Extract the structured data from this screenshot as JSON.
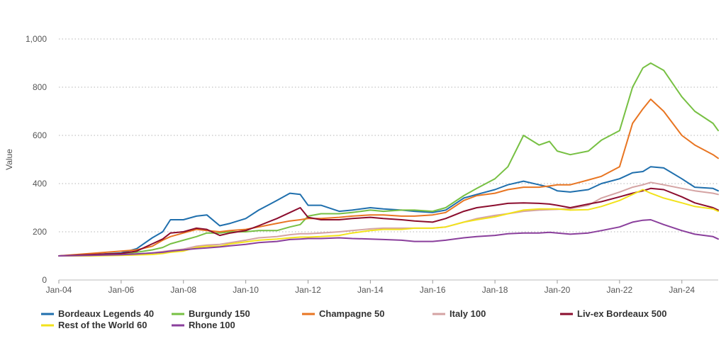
{
  "chart_data": {
    "type": "line",
    "title": "",
    "xlabel": "",
    "ylabel": "Value",
    "ylim": [
      0,
      1000
    ],
    "y_ticks": [
      "0",
      "200",
      "400",
      "600",
      "800",
      "1,000"
    ],
    "x_ticks": [
      "Jan-04",
      "Jan-06",
      "Jan-08",
      "Jan-10",
      "Jan-12",
      "Jan-14",
      "Jan-16",
      "Jan-18",
      "Jan-20",
      "Jan-22",
      "Jan-24"
    ],
    "grid": true,
    "legend_position": "bottom",
    "x_start": "2004-01",
    "x_end": "2025-03",
    "x": [
      "2004-01",
      "2005-01",
      "2006-01",
      "2006-07",
      "2007-01",
      "2007-05",
      "2007-08",
      "2008-01",
      "2008-06",
      "2008-10",
      "2009-03",
      "2009-07",
      "2010-01",
      "2010-06",
      "2011-01",
      "2011-06",
      "2011-10",
      "2012-01",
      "2012-06",
      "2013-01",
      "2013-06",
      "2014-01",
      "2014-06",
      "2015-01",
      "2015-06",
      "2016-01",
      "2016-06",
      "2017-01",
      "2017-06",
      "2018-01",
      "2018-06",
      "2018-12",
      "2019-06",
      "2019-10",
      "2020-01",
      "2020-06",
      "2021-01",
      "2021-06",
      "2022-01",
      "2022-06",
      "2022-10",
      "2023-01",
      "2023-06",
      "2024-01",
      "2024-06",
      "2025-01",
      "2025-03"
    ],
    "series": [
      {
        "name": "Bordeaux Legends 40",
        "color": "#1f6fad",
        "values": [
          100,
          105,
          112,
          130,
          175,
          200,
          250,
          250,
          265,
          270,
          225,
          235,
          255,
          290,
          330,
          360,
          355,
          310,
          310,
          285,
          290,
          300,
          295,
          290,
          285,
          280,
          290,
          340,
          355,
          375,
          395,
          410,
          395,
          385,
          370,
          365,
          375,
          400,
          420,
          445,
          450,
          470,
          465,
          420,
          385,
          380,
          370
        ]
      },
      {
        "name": "Burgundy 150",
        "color": "#77c043",
        "values": [
          100,
          102,
          108,
          115,
          125,
          135,
          150,
          165,
          180,
          195,
          195,
          200,
          200,
          205,
          205,
          220,
          230,
          265,
          275,
          275,
          280,
          290,
          285,
          290,
          290,
          285,
          300,
          350,
          380,
          420,
          470,
          600,
          560,
          575,
          535,
          520,
          535,
          580,
          620,
          800,
          880,
          900,
          870,
          760,
          700,
          650,
          620
        ]
      },
      {
        "name": "Champagne 50",
        "color": "#e87522",
        "values": [
          100,
          110,
          120,
          125,
          140,
          165,
          180,
          195,
          210,
          205,
          200,
          205,
          210,
          220,
          235,
          245,
          250,
          255,
          255,
          260,
          265,
          270,
          270,
          265,
          265,
          270,
          280,
          330,
          350,
          360,
          375,
          385,
          385,
          390,
          395,
          395,
          415,
          430,
          470,
          650,
          710,
          750,
          700,
          600,
          560,
          520,
          505
        ]
      },
      {
        "name": "Italy 100",
        "color": "#d4a3a3",
        "values": [
          100,
          102,
          105,
          108,
          112,
          118,
          122,
          128,
          140,
          145,
          148,
          155,
          165,
          175,
          180,
          188,
          192,
          192,
          195,
          200,
          205,
          212,
          215,
          215,
          215,
          215,
          220,
          240,
          255,
          268,
          275,
          285,
          290,
          292,
          293,
          296,
          310,
          340,
          365,
          385,
          395,
          405,
          395,
          380,
          370,
          360,
          355
        ]
      },
      {
        "name": "Liv-ex Bordeaux 500",
        "color": "#8b0d2e",
        "values": [
          100,
          105,
          110,
          120,
          150,
          170,
          195,
          200,
          215,
          210,
          185,
          195,
          205,
          225,
          255,
          280,
          300,
          260,
          250,
          250,
          255,
          260,
          255,
          250,
          245,
          240,
          255,
          285,
          300,
          310,
          318,
          320,
          318,
          315,
          310,
          300,
          315,
          325,
          345,
          360,
          370,
          380,
          375,
          345,
          320,
          300,
          290
        ]
      },
      {
        "name": "Rest of the World 60",
        "color": "#f2e21b",
        "values": [
          100,
          100,
          102,
          104,
          106,
          110,
          115,
          120,
          135,
          140,
          140,
          150,
          158,
          165,
          170,
          175,
          178,
          178,
          180,
          185,
          195,
          205,
          210,
          210,
          215,
          215,
          220,
          240,
          250,
          262,
          275,
          290,
          295,
          295,
          295,
          290,
          292,
          305,
          330,
          355,
          375,
          360,
          340,
          320,
          305,
          295,
          285
        ]
      },
      {
        "name": "Rhone 100",
        "color": "#8a3f9c",
        "values": [
          100,
          102,
          105,
          108,
          112,
          115,
          120,
          125,
          130,
          133,
          137,
          142,
          148,
          155,
          160,
          168,
          170,
          172,
          172,
          175,
          172,
          170,
          168,
          165,
          160,
          160,
          165,
          175,
          180,
          185,
          192,
          195,
          195,
          198,
          195,
          190,
          195,
          205,
          220,
          240,
          248,
          250,
          230,
          205,
          190,
          180,
          170
        ]
      }
    ]
  }
}
